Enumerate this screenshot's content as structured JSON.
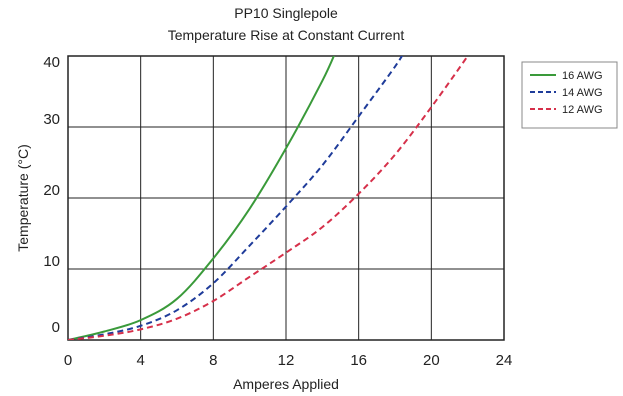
{
  "chart_data": {
    "type": "line",
    "title": "PP10 Singlepole",
    "subtitle": "Temperature Rise at Constant Current",
    "xlabel": "Amperes Applied",
    "ylabel": "Temperature (°C)",
    "xlim": [
      0,
      24
    ],
    "ylim": [
      0,
      40
    ],
    "xticks": [
      0,
      4,
      8,
      12,
      16,
      20,
      24
    ],
    "yticks": [
      0,
      10,
      20,
      30,
      40
    ],
    "grid": true,
    "legend_position": "right",
    "series": [
      {
        "name": "16 AWG",
        "color": "#3a9a3a",
        "dash": "solid",
        "x": [
          0,
          2,
          4,
          6,
          8,
          10,
          12,
          14,
          14.8
        ],
        "y": [
          0,
          1.2,
          2.8,
          5.8,
          11.5,
          18.5,
          27,
          36.5,
          41
        ]
      },
      {
        "name": "14 AWG",
        "color": "#1f3c9a",
        "dash": "dashed",
        "x": [
          0,
          2,
          4,
          6,
          8,
          10,
          12,
          14,
          16,
          18,
          18.6
        ],
        "y": [
          0,
          0.8,
          2,
          4.2,
          8,
          13.3,
          18.8,
          24.6,
          31.5,
          38.5,
          41
        ]
      },
      {
        "name": "12 AWG",
        "color": "#d6304a",
        "dash": "dashed",
        "x": [
          0,
          2,
          4,
          6,
          8,
          10,
          12,
          14,
          16,
          18,
          20,
          22,
          22.2
        ],
        "y": [
          0,
          0.6,
          1.5,
          3,
          5.5,
          8.9,
          12.3,
          15.9,
          20.6,
          26.1,
          32.8,
          40,
          41
        ]
      }
    ]
  }
}
